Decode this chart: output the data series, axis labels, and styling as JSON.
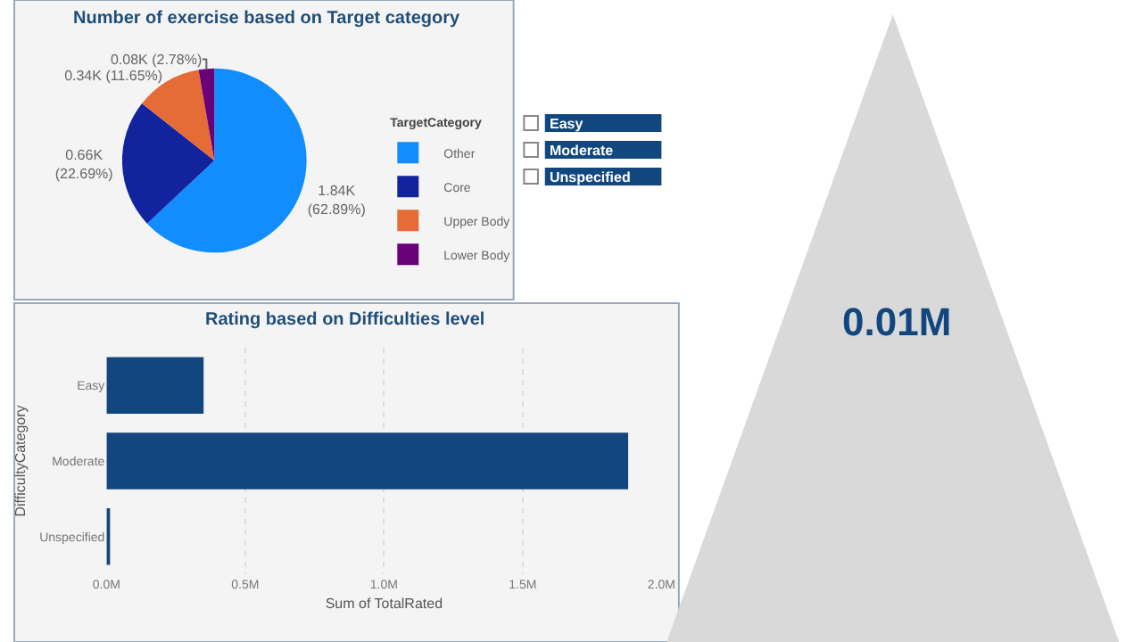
{
  "chart_data": [
    {
      "type": "pie",
      "title": "Number of exercise based on Target category",
      "legend_title": "TargetCategory",
      "legend": "right",
      "categories": [
        "Other",
        "Core",
        "Upper Body",
        "Lower Body"
      ],
      "values": [
        1840,
        660,
        340,
        80
      ],
      "value_labels": [
        "1.84K (62.89%)",
        "0.66K (22.69%)",
        "0.34K (11.65%)",
        "0.08K (2.78%)"
      ],
      "colors": [
        "#118dff",
        "#12239e",
        "#e66c37",
        "#6b007b"
      ]
    },
    {
      "type": "bar",
      "orientation": "horizontal",
      "title": "Rating based on Difficulties level",
      "xlabel": "Sum of TotalRated",
      "ylabel": "DifficultyCategory",
      "categories": [
        "Easy",
        "Moderate",
        "Unspecified"
      ],
      "values": [
        0.35,
        1.88,
        0.01
      ],
      "color": "#12467f",
      "xlim": [
        0,
        2.0
      ],
      "xticks": [
        {
          "value": 0,
          "label": "0.0M"
        },
        {
          "value": 0.5,
          "label": "0.5M"
        },
        {
          "value": 1.0,
          "label": "1.0M"
        },
        {
          "value": 1.5,
          "label": "1.5M"
        },
        {
          "value": 2.0,
          "label": "2.0M"
        }
      ],
      "grid": "x"
    },
    {
      "type": "other",
      "annotations": [
        "Easy",
        "Moderate",
        "Unspecified"
      ]
    },
    {
      "type": "other",
      "annotations": [
        "0.01M"
      ]
    }
  ]
}
